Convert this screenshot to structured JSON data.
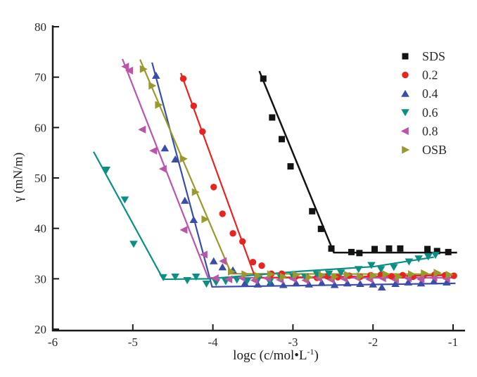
{
  "figure": {
    "background": "#ffffff",
    "title": ""
  },
  "chart_data": {
    "type": "scatter",
    "title": "",
    "xlabel_prefix": "logc (c/mol•L",
    "xlabel_superscript": "-1",
    "xlabel_suffix": ")",
    "ylabel": "γ (mN/m)",
    "xlim": [
      -6,
      -1
    ],
    "ylim": [
      20,
      80
    ],
    "x_ticks": [
      "-6",
      "-5",
      "-4",
      "-3",
      "-2",
      "-1"
    ],
    "y_ticks": [
      "20",
      "30",
      "40",
      "50",
      "60",
      "70",
      "80"
    ],
    "grid": false,
    "legend_position": "upper right",
    "axis_color": "#1a1a1a",
    "series": [
      {
        "name": "SDS",
        "color": "#131313",
        "marker": "square",
        "scatter": [
          [
            -3.37,
            69.7
          ],
          [
            -3.26,
            62.0
          ],
          [
            -3.14,
            57.7
          ],
          [
            -3.03,
            52.3
          ],
          [
            -2.76,
            43.4
          ],
          [
            -2.65,
            39.9
          ],
          [
            -2.52,
            36.0
          ],
          [
            -2.27,
            35.3
          ],
          [
            -2.17,
            35.1
          ],
          [
            -1.98,
            35.9
          ],
          [
            -1.8,
            36.0
          ],
          [
            -1.66,
            36.0
          ],
          [
            -1.32,
            35.9
          ],
          [
            -1.2,
            35.5
          ],
          [
            -1.06,
            35.3
          ]
        ],
        "line": [
          [
            -3.42,
            71.2
          ],
          [
            -2.49,
            35.2
          ],
          [
            -0.95,
            35.2
          ]
        ]
      },
      {
        "name": "0.2",
        "color": "#e62420",
        "marker": "circle",
        "scatter": [
          [
            -4.37,
            69.7
          ],
          [
            -4.24,
            64.3
          ],
          [
            -4.13,
            59.2
          ],
          [
            -3.99,
            48.2
          ],
          [
            -3.88,
            42.9
          ],
          [
            -3.75,
            39.0
          ],
          [
            -3.63,
            37.4
          ],
          [
            -3.5,
            33.3
          ],
          [
            -3.39,
            32.6
          ],
          [
            -3.27,
            31.0
          ],
          [
            -3.14,
            31.0
          ],
          [
            -2.97,
            30.4
          ],
          [
            -2.83,
            30.3
          ],
          [
            -2.7,
            30.2
          ],
          [
            -2.57,
            30.5
          ],
          [
            -2.44,
            30.3
          ],
          [
            -2.3,
            30.6
          ],
          [
            -2.16,
            30.4
          ],
          [
            -2.03,
            30.7
          ],
          [
            -1.9,
            30.8
          ],
          [
            -1.77,
            30.5
          ],
          [
            -1.63,
            30.7
          ],
          [
            -1.5,
            30.4
          ],
          [
            -1.37,
            30.6
          ],
          [
            -1.23,
            30.8
          ],
          [
            -1.1,
            30.7
          ],
          [
            -0.99,
            30.6
          ]
        ],
        "line": [
          [
            -4.4,
            70.8
          ],
          [
            -3.47,
            30.2
          ],
          [
            -0.97,
            30.7
          ]
        ]
      },
      {
        "name": "0.4",
        "color": "#3a4ea8",
        "marker": "triangle-up",
        "scatter": [
          [
            -4.71,
            70.3
          ],
          [
            -4.6,
            55.9
          ],
          [
            -4.47,
            53.7
          ],
          [
            -4.35,
            45.5
          ],
          [
            -4.24,
            41.7
          ],
          [
            -3.99,
            33.5
          ],
          [
            -3.88,
            32.3
          ],
          [
            -3.75,
            31.7
          ],
          [
            -3.6,
            29.1
          ],
          [
            -3.44,
            28.9
          ],
          [
            -3.28,
            29.3
          ],
          [
            -3.12,
            28.8
          ],
          [
            -2.96,
            29.1
          ],
          [
            -2.8,
            28.9
          ],
          [
            -2.64,
            29.2
          ],
          [
            -2.48,
            28.8
          ],
          [
            -2.32,
            29.1
          ],
          [
            -2.16,
            29.0
          ],
          [
            -2.0,
            28.9
          ],
          [
            -1.89,
            28.3
          ],
          [
            -1.72,
            29.0
          ],
          [
            -1.56,
            29.3
          ],
          [
            -1.4,
            29.1
          ],
          [
            -1.24,
            29.5
          ],
          [
            -1.08,
            29.3
          ]
        ],
        "line": [
          [
            -4.76,
            72.9
          ],
          [
            -4.01,
            28.4
          ],
          [
            -0.97,
            29.1
          ]
        ]
      },
      {
        "name": "0.6",
        "color": "#0b8f83",
        "marker": "triangle-down",
        "scatter": [
          [
            -5.33,
            51.6
          ],
          [
            -5.1,
            45.7
          ],
          [
            -4.99,
            36.9
          ],
          [
            -4.62,
            30.3
          ],
          [
            -4.47,
            30.4
          ],
          [
            -4.32,
            29.7
          ],
          [
            -4.21,
            30.4
          ],
          [
            -4.08,
            29.0
          ],
          [
            -3.96,
            29.3
          ],
          [
            -3.84,
            29.5
          ],
          [
            -3.7,
            29.8
          ],
          [
            -3.57,
            29.6
          ],
          [
            -3.43,
            30.0
          ],
          [
            -3.29,
            29.4
          ],
          [
            -3.15,
            30.2
          ],
          [
            -3.0,
            30.5
          ],
          [
            -2.85,
            30.4
          ],
          [
            -2.7,
            30.9
          ],
          [
            -2.55,
            31.0
          ],
          [
            -2.4,
            31.2
          ],
          [
            -2.18,
            31.9
          ],
          [
            -2.02,
            32.7
          ],
          [
            -1.9,
            31.9
          ],
          [
            -1.74,
            32.3
          ],
          [
            -1.55,
            33.4
          ],
          [
            -1.43,
            34.0
          ],
          [
            -1.31,
            34.4
          ],
          [
            -1.22,
            34.7
          ]
        ],
        "line": [
          [
            -5.49,
            55.2
          ],
          [
            -4.62,
            29.9
          ],
          [
            -4.05,
            30.0
          ],
          [
            -2.9,
            31.5
          ],
          [
            -2.0,
            32.4
          ],
          [
            -1.24,
            34.3
          ]
        ]
      },
      {
        "name": "0.8",
        "color": "#bb55a8",
        "marker": "triangle-left",
        "scatter": [
          [
            -5.09,
            72.1
          ],
          [
            -5.04,
            71.3
          ],
          [
            -4.88,
            59.6
          ],
          [
            -4.74,
            55.4
          ],
          [
            -4.62,
            51.8
          ],
          [
            -4.36,
            39.7
          ],
          [
            -4.11,
            34.8
          ],
          [
            -3.87,
            33.5
          ],
          [
            -3.97,
            30.1
          ],
          [
            -3.8,
            29.9
          ],
          [
            -3.64,
            30.2
          ],
          [
            -3.48,
            29.7
          ],
          [
            -3.32,
            30.1
          ],
          [
            -3.16,
            29.8
          ],
          [
            -3.0,
            30.0
          ],
          [
            -2.84,
            29.7
          ],
          [
            -2.68,
            30.1
          ],
          [
            -2.52,
            29.8
          ],
          [
            -2.36,
            30.0
          ],
          [
            -2.2,
            30.2
          ],
          [
            -2.04,
            29.9
          ],
          [
            -1.88,
            30.1
          ],
          [
            -1.72,
            29.8
          ],
          [
            -1.56,
            30.1
          ],
          [
            -1.4,
            29.9
          ],
          [
            -1.24,
            30.2
          ],
          [
            -1.08,
            30.0
          ]
        ],
        "line": [
          [
            -5.13,
            73.6
          ],
          [
            -4.06,
            30.2
          ],
          [
            -0.97,
            30.2
          ]
        ]
      },
      {
        "name": "OSB",
        "color": "#99992e",
        "marker": "triangle-right",
        "scatter": [
          [
            -4.87,
            71.6
          ],
          [
            -4.76,
            68.3
          ],
          [
            -4.68,
            64.5
          ],
          [
            -4.37,
            53.8
          ],
          [
            -4.22,
            47.2
          ],
          [
            -4.1,
            41.8
          ],
          [
            -3.77,
            31.4
          ],
          [
            -3.6,
            30.9
          ],
          [
            -3.44,
            30.6
          ],
          [
            -3.28,
            30.9
          ],
          [
            -3.12,
            30.4
          ],
          [
            -2.96,
            30.8
          ],
          [
            -2.8,
            30.3
          ],
          [
            -2.64,
            30.7
          ],
          [
            -2.48,
            30.4
          ],
          [
            -2.32,
            30.8
          ],
          [
            -2.16,
            30.5
          ],
          [
            -2.0,
            30.6
          ],
          [
            -1.84,
            30.9
          ],
          [
            -1.68,
            30.4
          ],
          [
            -1.52,
            30.9
          ],
          [
            -1.36,
            31.1
          ],
          [
            -1.2,
            31.2
          ],
          [
            -1.05,
            30.8
          ]
        ],
        "line": [
          [
            -4.91,
            73.5
          ],
          [
            -3.77,
            31.0
          ],
          [
            -0.97,
            30.9
          ]
        ]
      }
    ]
  }
}
